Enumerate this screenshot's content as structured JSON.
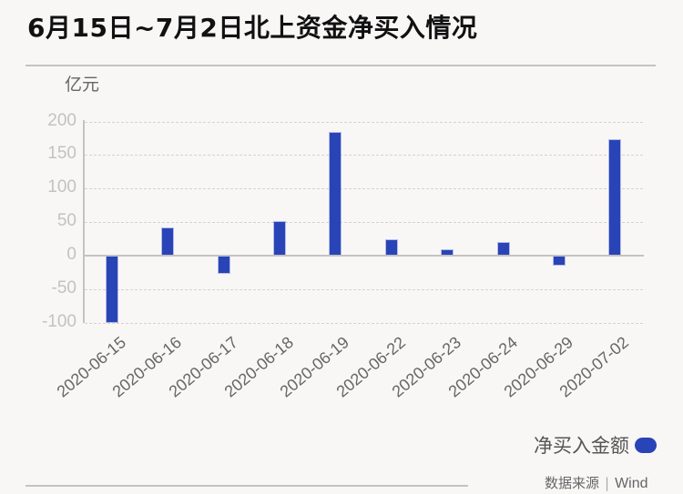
{
  "header": {
    "title": "6月15日~7月2日北上资金净买入情况"
  },
  "chart_data": {
    "type": "bar",
    "title": "6月15日~7月2日北上资金净买入情况",
    "xlabel": "",
    "ylabel": "亿元",
    "unit_label": "亿元",
    "ylim": [
      -100,
      200
    ],
    "yticks": [
      200,
      150,
      100,
      50,
      0,
      -50,
      -100
    ],
    "grid": true,
    "legend_position": "bottom-right",
    "categories": [
      "2020-06-15",
      "2020-06-16",
      "2020-06-17",
      "2020-06-18",
      "2020-06-19",
      "2020-06-22",
      "2020-06-23",
      "2020-06-24",
      "2020-06-29",
      "2020-07-02"
    ],
    "series": [
      {
        "name": "净买入金额",
        "color": "#2944b7",
        "values": [
          -99.6,
          40.4,
          -26.7,
          50.3,
          183.7,
          22.3,
          8.2,
          19.0,
          -13.6,
          172.0
        ]
      }
    ]
  },
  "legend": {
    "label": "净买入金额",
    "color": "#2944b7"
  },
  "footer": {
    "source_label": "数据来源",
    "separator": "|",
    "source_name": "Wind"
  }
}
